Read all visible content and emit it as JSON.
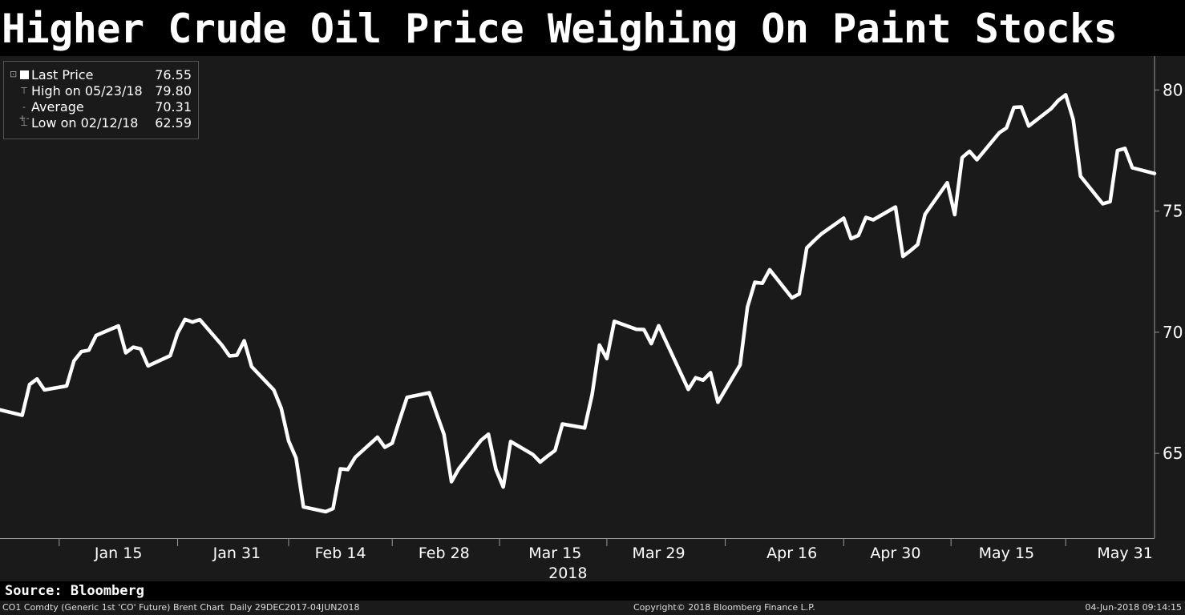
{
  "title": "Higher Crude Oil Price Weighing On Paint Stocks",
  "legend": [
    {
      "icon": "square-icon",
      "label": "Last Price",
      "value": "76.55"
    },
    {
      "icon": "high-marker-icon",
      "label": "High on 05/23/18",
      "value": "79.80"
    },
    {
      "icon": "average-marker-icon",
      "label": "Average",
      "value": "70.31"
    },
    {
      "icon": "low-marker-icon",
      "label": "Low on 02/12/18",
      "value": "62.59"
    }
  ],
  "source": "Source: Bloomberg",
  "footer": {
    "left": "CO1 Comdty (Generic 1st 'CO' Future) Brent Chart  Daily 29DEC2017-04JUN2018",
    "center": "Copyright© 2018 Bloomberg Finance L.P.",
    "right": "04-Jun-2018 09:14:15"
  },
  "chart_data": {
    "type": "line",
    "title": "Higher Crude Oil Price Weighing On Paint Stocks",
    "xlabel": "2018",
    "ylabel": "",
    "ylim": [
      61.5,
      81.4
    ],
    "grid": false,
    "y_ticks": [
      65,
      70,
      75,
      80
    ],
    "x_ticks": [
      {
        "label": "Jan 15",
        "date": "2018-01-15"
      },
      {
        "label": "Jan 31",
        "date": "2018-01-31"
      },
      {
        "label": "Feb 14",
        "date": "2018-02-14"
      },
      {
        "label": "Feb 28",
        "date": "2018-02-28"
      },
      {
        "label": "Mar 15",
        "date": "2018-03-15"
      },
      {
        "label": "Mar 29",
        "date": "2018-03-29"
      },
      {
        "label": "Apr 16",
        "date": "2018-04-16"
      },
      {
        "label": "Apr 30",
        "date": "2018-04-30"
      },
      {
        "label": "May 15",
        "date": "2018-05-15"
      },
      {
        "label": "May 31",
        "date": "2018-05-31"
      }
    ],
    "x_range": [
      "2017-12-30",
      "2018-06-04"
    ],
    "series": [
      {
        "name": "Last Price",
        "color": "#ffffff",
        "points": [
          [
            "2017-12-29",
            66.87
          ],
          [
            "2018-01-02",
            66.57
          ],
          [
            "2018-01-03",
            67.84
          ],
          [
            "2018-01-04",
            68.07
          ],
          [
            "2018-01-05",
            67.62
          ],
          [
            "2018-01-08",
            67.78
          ],
          [
            "2018-01-09",
            68.82
          ],
          [
            "2018-01-10",
            69.2
          ],
          [
            "2018-01-11",
            69.26
          ],
          [
            "2018-01-12",
            69.87
          ],
          [
            "2018-01-15",
            70.26
          ],
          [
            "2018-01-16",
            69.15
          ],
          [
            "2018-01-17",
            69.38
          ],
          [
            "2018-01-18",
            69.31
          ],
          [
            "2018-01-19",
            68.61
          ],
          [
            "2018-01-22",
            69.03
          ],
          [
            "2018-01-23",
            69.96
          ],
          [
            "2018-01-24",
            70.53
          ],
          [
            "2018-01-25",
            70.42
          ],
          [
            "2018-01-26",
            70.52
          ],
          [
            "2018-01-29",
            69.46
          ],
          [
            "2018-01-30",
            69.02
          ],
          [
            "2018-01-31",
            69.05
          ],
          [
            "2018-02-01",
            69.65
          ],
          [
            "2018-02-02",
            68.58
          ],
          [
            "2018-02-05",
            67.62
          ],
          [
            "2018-02-06",
            66.86
          ],
          [
            "2018-02-07",
            65.51
          ],
          [
            "2018-02-08",
            64.81
          ],
          [
            "2018-02-09",
            62.79
          ],
          [
            "2018-02-12",
            62.59
          ],
          [
            "2018-02-13",
            62.72
          ],
          [
            "2018-02-14",
            64.36
          ],
          [
            "2018-02-15",
            64.33
          ],
          [
            "2018-02-16",
            64.84
          ],
          [
            "2018-02-19",
            65.67
          ],
          [
            "2018-02-20",
            65.25
          ],
          [
            "2018-02-21",
            65.42
          ],
          [
            "2018-02-22",
            66.39
          ],
          [
            "2018-02-23",
            67.31
          ],
          [
            "2018-02-26",
            67.5
          ],
          [
            "2018-02-27",
            66.63
          ],
          [
            "2018-02-28",
            65.78
          ],
          [
            "2018-03-01",
            63.83
          ],
          [
            "2018-03-02",
            64.37
          ],
          [
            "2018-03-05",
            65.54
          ],
          [
            "2018-03-06",
            65.79
          ],
          [
            "2018-03-07",
            64.34
          ],
          [
            "2018-03-08",
            63.61
          ],
          [
            "2018-03-09",
            65.49
          ],
          [
            "2018-03-12",
            64.95
          ],
          [
            "2018-03-13",
            64.64
          ],
          [
            "2018-03-14",
            64.89
          ],
          [
            "2018-03-15",
            65.12
          ],
          [
            "2018-03-16",
            66.21
          ],
          [
            "2018-03-19",
            66.05
          ],
          [
            "2018-03-20",
            67.42
          ],
          [
            "2018-03-21",
            69.47
          ],
          [
            "2018-03-22",
            68.91
          ],
          [
            "2018-03-23",
            70.45
          ],
          [
            "2018-03-26",
            70.12
          ],
          [
            "2018-03-27",
            70.11
          ],
          [
            "2018-03-28",
            69.53
          ],
          [
            "2018-03-29",
            70.27
          ],
          [
            "2018-04-02",
            67.64
          ],
          [
            "2018-04-03",
            68.12
          ],
          [
            "2018-04-04",
            68.02
          ],
          [
            "2018-04-05",
            68.33
          ],
          [
            "2018-04-06",
            67.11
          ],
          [
            "2018-04-09",
            68.65
          ],
          [
            "2018-04-10",
            71.04
          ],
          [
            "2018-04-11",
            72.06
          ],
          [
            "2018-04-12",
            72.02
          ],
          [
            "2018-04-13",
            72.58
          ],
          [
            "2018-04-16",
            71.42
          ],
          [
            "2018-04-17",
            71.58
          ],
          [
            "2018-04-18",
            73.48
          ],
          [
            "2018-04-19",
            73.78
          ],
          [
            "2018-04-20",
            74.06
          ],
          [
            "2018-04-23",
            74.71
          ],
          [
            "2018-04-24",
            73.86
          ],
          [
            "2018-04-25",
            74.0
          ],
          [
            "2018-04-26",
            74.74
          ],
          [
            "2018-04-27",
            74.64
          ],
          [
            "2018-04-30",
            75.17
          ],
          [
            "2018-05-01",
            73.13
          ],
          [
            "2018-05-02",
            73.36
          ],
          [
            "2018-05-03",
            73.62
          ],
          [
            "2018-05-04",
            74.87
          ],
          [
            "2018-05-07",
            76.17
          ],
          [
            "2018-05-08",
            74.85
          ],
          [
            "2018-05-09",
            77.21
          ],
          [
            "2018-05-10",
            77.47
          ],
          [
            "2018-05-11",
            77.12
          ],
          [
            "2018-05-14",
            78.23
          ],
          [
            "2018-05-15",
            78.43
          ],
          [
            "2018-05-16",
            79.28
          ],
          [
            "2018-05-17",
            79.3
          ],
          [
            "2018-05-18",
            78.51
          ],
          [
            "2018-05-21",
            79.22
          ],
          [
            "2018-05-22",
            79.57
          ],
          [
            "2018-05-23",
            79.8
          ],
          [
            "2018-05-24",
            78.79
          ],
          [
            "2018-05-25",
            76.44
          ],
          [
            "2018-05-28",
            75.3
          ],
          [
            "2018-05-29",
            75.39
          ],
          [
            "2018-05-30",
            77.5
          ],
          [
            "2018-05-31",
            77.59
          ],
          [
            "2018-06-01",
            76.79
          ],
          [
            "2018-06-04",
            76.55
          ]
        ]
      }
    ]
  }
}
